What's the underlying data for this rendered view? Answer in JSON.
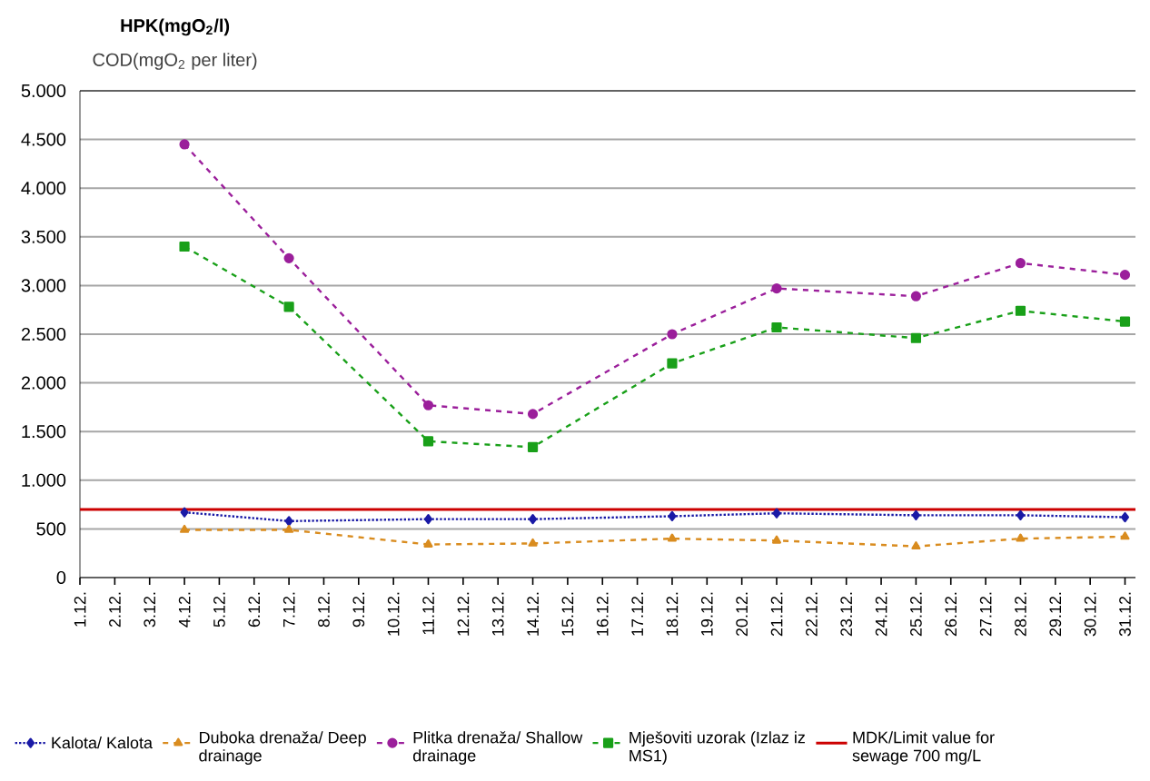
{
  "chart_data": {
    "type": "line",
    "title": "HPK(mgO$_{2}$/l)",
    "subtitle": "COD(mgO$_{2}$ per liter)",
    "categories": [
      "1.12.",
      "2.12.",
      "3.12.",
      "4.12.",
      "5.12.",
      "6.12.",
      "7.12.",
      "8.12.",
      "9.12.",
      "10.12.",
      "11.12.",
      "12.12.",
      "13.12.",
      "14.12.",
      "15.12.",
      "16.12.",
      "17.12.",
      "18.12.",
      "19.12.",
      "20.12.",
      "21.12.",
      "22.12.",
      "23.12.",
      "24.12.",
      "25.12.",
      "26.12.",
      "27.12.",
      "28.12.",
      "29.12.",
      "30.12.",
      "31.12."
    ],
    "series": [
      {
        "name": "Kalota/ Kalota",
        "color": "#1a1aa6",
        "marker": "diamond",
        "line_style": "dotted",
        "values": [
          null,
          null,
          null,
          670,
          null,
          null,
          580,
          null,
          null,
          null,
          600,
          null,
          null,
          600,
          null,
          null,
          null,
          630,
          null,
          null,
          660,
          null,
          null,
          null,
          640,
          null,
          null,
          640,
          null,
          null,
          620
        ]
      },
      {
        "name": "Duboka drenaža/ Deep drainage",
        "color": "#d98c1f",
        "marker": "triangle",
        "line_style": "dashed",
        "values": [
          null,
          null,
          null,
          490,
          null,
          null,
          490,
          null,
          null,
          null,
          340,
          null,
          null,
          350,
          null,
          null,
          null,
          400,
          null,
          null,
          380,
          null,
          null,
          null,
          320,
          null,
          null,
          400,
          null,
          null,
          420
        ]
      },
      {
        "name": "Plitka drenaža/ Shallow drainage",
        "color": "#9b1f9b",
        "marker": "circle",
        "line_style": "dashed",
        "values": [
          null,
          null,
          null,
          4450,
          null,
          null,
          3280,
          null,
          null,
          null,
          1770,
          null,
          null,
          1680,
          null,
          null,
          null,
          2500,
          null,
          null,
          2970,
          null,
          null,
          null,
          2890,
          null,
          null,
          3230,
          null,
          null,
          3110
        ]
      },
      {
        "name": "Mješoviti uzorak (Izlaz iz MS1)",
        "color": "#19a019",
        "marker": "square",
        "line_style": "dashed",
        "values": [
          null,
          null,
          null,
          3400,
          null,
          null,
          2780,
          null,
          null,
          null,
          1400,
          null,
          null,
          1340,
          null,
          null,
          null,
          2200,
          null,
          null,
          2570,
          null,
          null,
          null,
          2460,
          null,
          null,
          2740,
          null,
          null,
          2630
        ]
      }
    ],
    "ref_lines": [
      {
        "axis": "y",
        "value": 700,
        "label": "MDK/Limit value for sewage 700 mg/L",
        "color": "#cc0000"
      }
    ],
    "ylim": [
      0,
      5000
    ],
    "yticks": [
      0,
      {
        "value": 500,
        "label": "500"
      },
      {
        "value": 1000,
        "label": "1.000"
      },
      {
        "value": 1500,
        "label": "1.500"
      },
      {
        "value": 2000,
        "label": "2.000"
      },
      {
        "value": 2500,
        "label": "2.500"
      },
      {
        "value": 3000,
        "label": "3.000"
      },
      {
        "value": 3500,
        "label": "3.500"
      },
      {
        "value": 4000,
        "label": "4.000"
      },
      {
        "value": 4500,
        "label": "4.500"
      },
      {
        "value": 5000,
        "label": "5.000"
      }
    ],
    "grid": "y",
    "legend": "bottom"
  }
}
